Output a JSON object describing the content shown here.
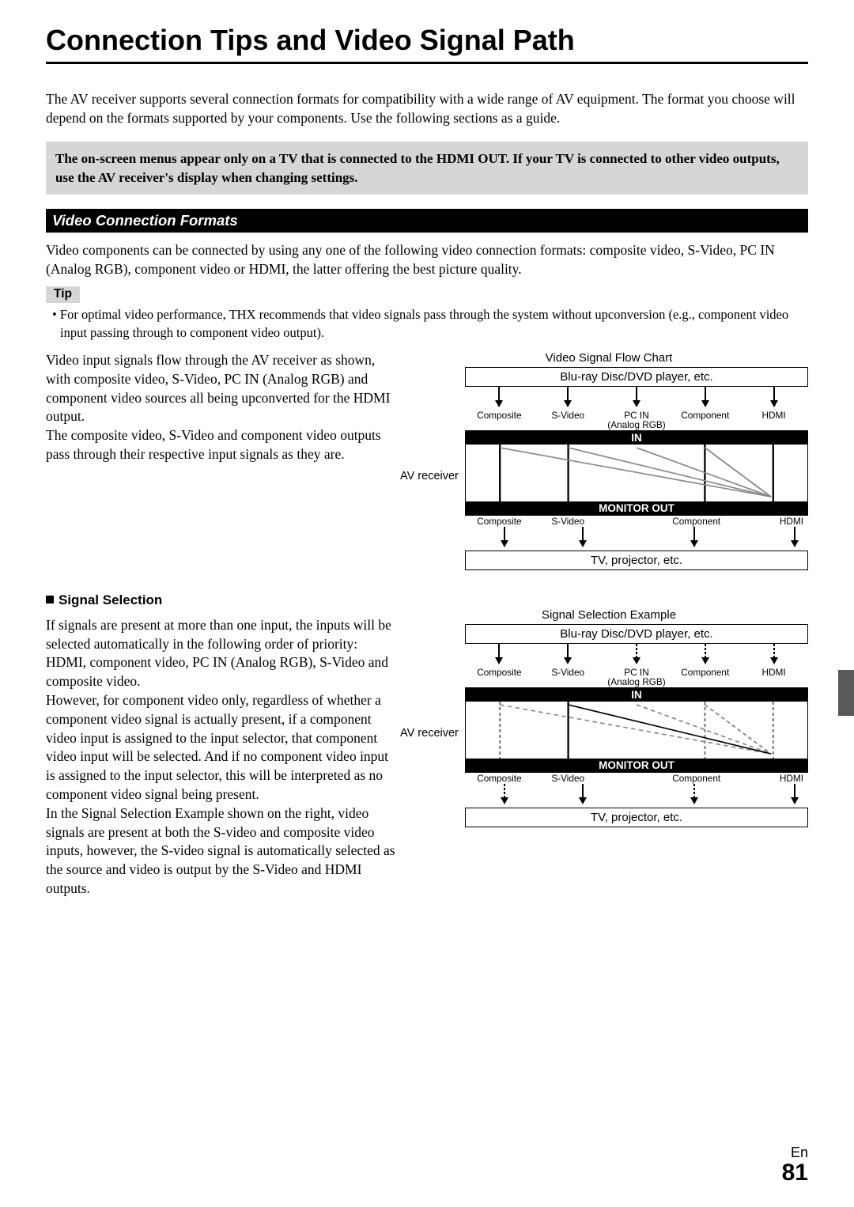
{
  "page": {
    "title": "Connection Tips and Video Signal Path",
    "intro": "The AV receiver supports several connection formats for compatibility with a wide range of AV equipment. The format you choose will depend on the formats supported by your components. Use the following sections as a guide.",
    "note_prefix": "The on-screen menus appear only on a TV that is connected to the ",
    "note_bold": "HDMI OUT.",
    "note_suffix": " If your TV is connected to other video outputs, use the AV receiver's display when changing settings.",
    "lang": "En",
    "number": "81"
  },
  "section": {
    "header": "Video Connection Formats",
    "intro": "Video components can be connected by using any one of the following video connection formats: composite video, S-Video, PC IN (Analog RGB), component video or HDMI, the latter offering the best picture quality.",
    "tip_label": "Tip",
    "tip_body": "• For optimal video performance, THX recommends that video signals pass through the system without upconversion (e.g., component video input passing through to component video output)."
  },
  "block1": {
    "text": "Video input signals flow through the AV receiver as shown, with composite video, S-Video, PC IN (Analog RGB) and component video sources all being upconverted for the HDMI output.\nThe composite video, S-Video and component video outputs pass through their respective input signals as they are."
  },
  "block2": {
    "heading": "Signal Selection",
    "text": "If signals are present at more than one input, the inputs will be selected automatically in the following order of priority: HDMI, component video, PC IN (Analog RGB), S-Video and composite video.\nHowever, for component video only, regardless of whether a component video signal is actually present, if a component video input is assigned to the input selector, that component video input will be selected. And if no component video input is assigned to the input selector, this will be interpreted as no component video signal being present.\nIn the Signal Selection Example shown on the right, video signals are present at both the S-video and composite video inputs, however, the S-video signal is automatically selected as the source and video is output by the S-Video and HDMI outputs."
  },
  "diag": {
    "d1_title": "Video Signal Flow Chart",
    "d2_title": "Signal Selection Example",
    "source": "Blu-ray Disc/DVD player, etc.",
    "sink": "TV, projector, etc.",
    "receiver": "AV receiver",
    "in": "IN",
    "out": "MONITOR OUT",
    "labels5": [
      "Composite",
      "S-Video",
      "PC IN\n(Analog RGB)",
      "Component",
      "HDMI"
    ],
    "labels4": [
      "Composite",
      "S-Video",
      "Component",
      "HDMI"
    ],
    "colors": {
      "line": "#000000",
      "line_gray": "#888888",
      "bg": "#ffffff"
    }
  }
}
